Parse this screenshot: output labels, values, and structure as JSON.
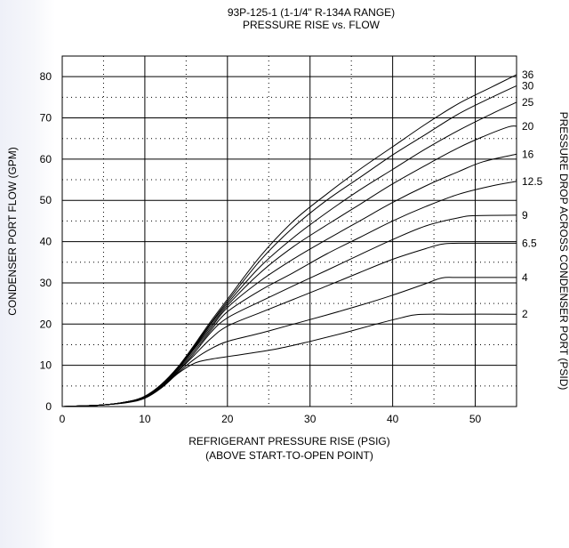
{
  "chart_data": {
    "type": "line",
    "title": "93P-125-1 (1-1/4\" R-134A RANGE)",
    "subtitle": "PRESSURE RISE vs. FLOW",
    "xlabel": "REFRIGERANT PRESSURE RISE (PSIG)",
    "xlabel2": "(ABOVE START-TO-OPEN POINT)",
    "ylabel": "CONDENSER PORT FLOW (GPM)",
    "ylabel_right": "PRESSURE DROP ACROSS CONDENSER PORT (PSID)",
    "xlim": [
      0,
      55
    ],
    "ylim": [
      0,
      85
    ],
    "x_ticks": [
      0,
      10,
      20,
      30,
      40,
      50
    ],
    "y_ticks": [
      0,
      10,
      20,
      30,
      40,
      50,
      60,
      70,
      80
    ],
    "x_tick_labels": [
      "0",
      "10",
      "20",
      "30",
      "40",
      "50"
    ],
    "y_tick_labels": [
      "0",
      "10",
      "20",
      "30",
      "40",
      "50",
      "60",
      "70",
      "80"
    ],
    "grid": "solid major lines every 10 units, dotted minor lines every 5 units",
    "series": [
      {
        "name": "2",
        "points": [
          [
            0,
            0
          ],
          [
            5,
            0.4
          ],
          [
            8,
            1
          ],
          [
            10,
            2
          ],
          [
            12,
            4.5
          ],
          [
            14,
            8
          ],
          [
            16,
            10.5
          ],
          [
            18,
            11.5
          ],
          [
            22,
            12.7
          ],
          [
            26,
            14
          ],
          [
            30,
            15.8
          ],
          [
            34,
            17.8
          ],
          [
            38,
            20
          ],
          [
            41,
            21.5
          ],
          [
            43,
            22.3
          ],
          [
            47,
            22.4
          ],
          [
            55,
            22.4
          ]
        ]
      },
      {
        "name": "4",
        "points": [
          [
            0,
            0
          ],
          [
            5,
            0.4
          ],
          [
            8,
            1.1
          ],
          [
            10,
            2.1
          ],
          [
            12,
            4.6
          ],
          [
            14,
            8.2
          ],
          [
            16,
            11.5
          ],
          [
            18,
            14
          ],
          [
            20,
            15.8
          ],
          [
            24,
            17.8
          ],
          [
            28,
            20
          ],
          [
            32,
            22.2
          ],
          [
            36,
            24.5
          ],
          [
            40,
            27
          ],
          [
            44,
            29.8
          ],
          [
            46,
            31.2
          ],
          [
            48,
            31.3
          ],
          [
            55,
            31.3
          ]
        ]
      },
      {
        "name": "6.5",
        "points": [
          [
            0,
            0
          ],
          [
            5,
            0.4
          ],
          [
            8,
            1.1
          ],
          [
            10,
            2.2
          ],
          [
            12,
            4.8
          ],
          [
            14,
            8.5
          ],
          [
            16,
            12.5
          ],
          [
            18,
            16.5
          ],
          [
            20,
            19.5
          ],
          [
            24,
            22.8
          ],
          [
            28,
            26
          ],
          [
            32,
            29.2
          ],
          [
            36,
            32.5
          ],
          [
            40,
            35.7
          ],
          [
            44,
            38.3
          ],
          [
            46,
            39.4
          ],
          [
            48,
            39.6
          ],
          [
            55,
            39.6
          ]
        ]
      },
      {
        "name": "9",
        "points": [
          [
            0,
            0
          ],
          [
            5,
            0.4
          ],
          [
            8,
            1.1
          ],
          [
            10,
            2.2
          ],
          [
            12,
            4.9
          ],
          [
            14,
            8.7
          ],
          [
            16,
            13
          ],
          [
            18,
            18
          ],
          [
            20,
            21.5
          ],
          [
            24,
            25.5
          ],
          [
            28,
            29.3
          ],
          [
            32,
            33
          ],
          [
            36,
            36.8
          ],
          [
            40,
            40.5
          ],
          [
            44,
            43.8
          ],
          [
            48,
            45.8
          ],
          [
            50,
            46.3
          ],
          [
            55,
            46.4
          ]
        ]
      },
      {
        "name": "12.5",
        "points": [
          [
            0,
            0
          ],
          [
            5,
            0.4
          ],
          [
            8,
            1.1
          ],
          [
            10,
            2.3
          ],
          [
            12,
            5
          ],
          [
            14,
            9
          ],
          [
            16,
            13.5
          ],
          [
            18,
            18.5
          ],
          [
            20,
            23
          ],
          [
            24,
            28.2
          ],
          [
            28,
            32.5
          ],
          [
            32,
            37
          ],
          [
            36,
            41
          ],
          [
            40,
            45
          ],
          [
            44,
            48.5
          ],
          [
            48,
            51.5
          ],
          [
            52,
            53.5
          ],
          [
            55,
            54.6
          ]
        ]
      },
      {
        "name": "16",
        "points": [
          [
            0,
            0
          ],
          [
            5,
            0.4
          ],
          [
            8,
            1.2
          ],
          [
            10,
            2.3
          ],
          [
            12,
            5
          ],
          [
            14,
            9.2
          ],
          [
            16,
            14
          ],
          [
            18,
            19
          ],
          [
            20,
            24
          ],
          [
            24,
            30.5
          ],
          [
            28,
            35.8
          ],
          [
            32,
            40.5
          ],
          [
            36,
            45
          ],
          [
            40,
            49.5
          ],
          [
            44,
            53.5
          ],
          [
            48,
            57
          ],
          [
            51,
            59.4
          ],
          [
            55,
            61.2
          ]
        ]
      },
      {
        "name": "20",
        "points": [
          [
            0,
            0
          ],
          [
            5,
            0.4
          ],
          [
            8,
            1.2
          ],
          [
            10,
            2.4
          ],
          [
            12,
            5.2
          ],
          [
            14,
            9.3
          ],
          [
            16,
            14.3
          ],
          [
            18,
            19.5
          ],
          [
            20,
            24.5
          ],
          [
            24,
            32.5
          ],
          [
            28,
            38.8
          ],
          [
            32,
            44
          ],
          [
            36,
            49
          ],
          [
            40,
            54
          ],
          [
            44,
            58.5
          ],
          [
            48,
            62.8
          ],
          [
            51,
            65.5
          ],
          [
            54,
            67.8
          ],
          [
            55,
            68
          ]
        ]
      },
      {
        "name": "25",
        "points": [
          [
            0,
            0
          ],
          [
            5,
            0.4
          ],
          [
            8,
            1.2
          ],
          [
            10,
            2.4
          ],
          [
            12,
            5.2
          ],
          [
            14,
            9.4
          ],
          [
            16,
            14.5
          ],
          [
            18,
            20
          ],
          [
            20,
            25
          ],
          [
            24,
            34
          ],
          [
            28,
            41
          ],
          [
            32,
            47
          ],
          [
            36,
            52.5
          ],
          [
            40,
            57.5
          ],
          [
            44,
            62.5
          ],
          [
            48,
            67
          ],
          [
            52,
            71
          ],
          [
            55,
            73.8
          ]
        ]
      },
      {
        "name": "30",
        "points": [
          [
            0,
            0
          ],
          [
            5,
            0.4
          ],
          [
            8,
            1.2
          ],
          [
            10,
            2.5
          ],
          [
            12,
            5.3
          ],
          [
            14,
            9.5
          ],
          [
            16,
            14.7
          ],
          [
            18,
            20.3
          ],
          [
            20,
            25.5
          ],
          [
            24,
            35.5
          ],
          [
            28,
            43.5
          ],
          [
            32,
            50
          ],
          [
            36,
            55.5
          ],
          [
            40,
            61
          ],
          [
            44,
            66
          ],
          [
            48,
            71
          ],
          [
            52,
            75
          ],
          [
            55,
            77.8
          ]
        ]
      },
      {
        "name": "36",
        "points": [
          [
            0,
            0
          ],
          [
            5,
            0.4
          ],
          [
            8,
            1.2
          ],
          [
            10,
            2.5
          ],
          [
            12,
            5.4
          ],
          [
            14,
            9.6
          ],
          [
            16,
            15
          ],
          [
            18,
            20.7
          ],
          [
            20,
            26
          ],
          [
            24,
            36.5
          ],
          [
            28,
            45
          ],
          [
            32,
            51.5
          ],
          [
            36,
            57.5
          ],
          [
            40,
            63
          ],
          [
            44,
            68.5
          ],
          [
            48,
            73.5
          ],
          [
            52,
            77.5
          ],
          [
            55,
            80.5
          ]
        ]
      }
    ]
  }
}
